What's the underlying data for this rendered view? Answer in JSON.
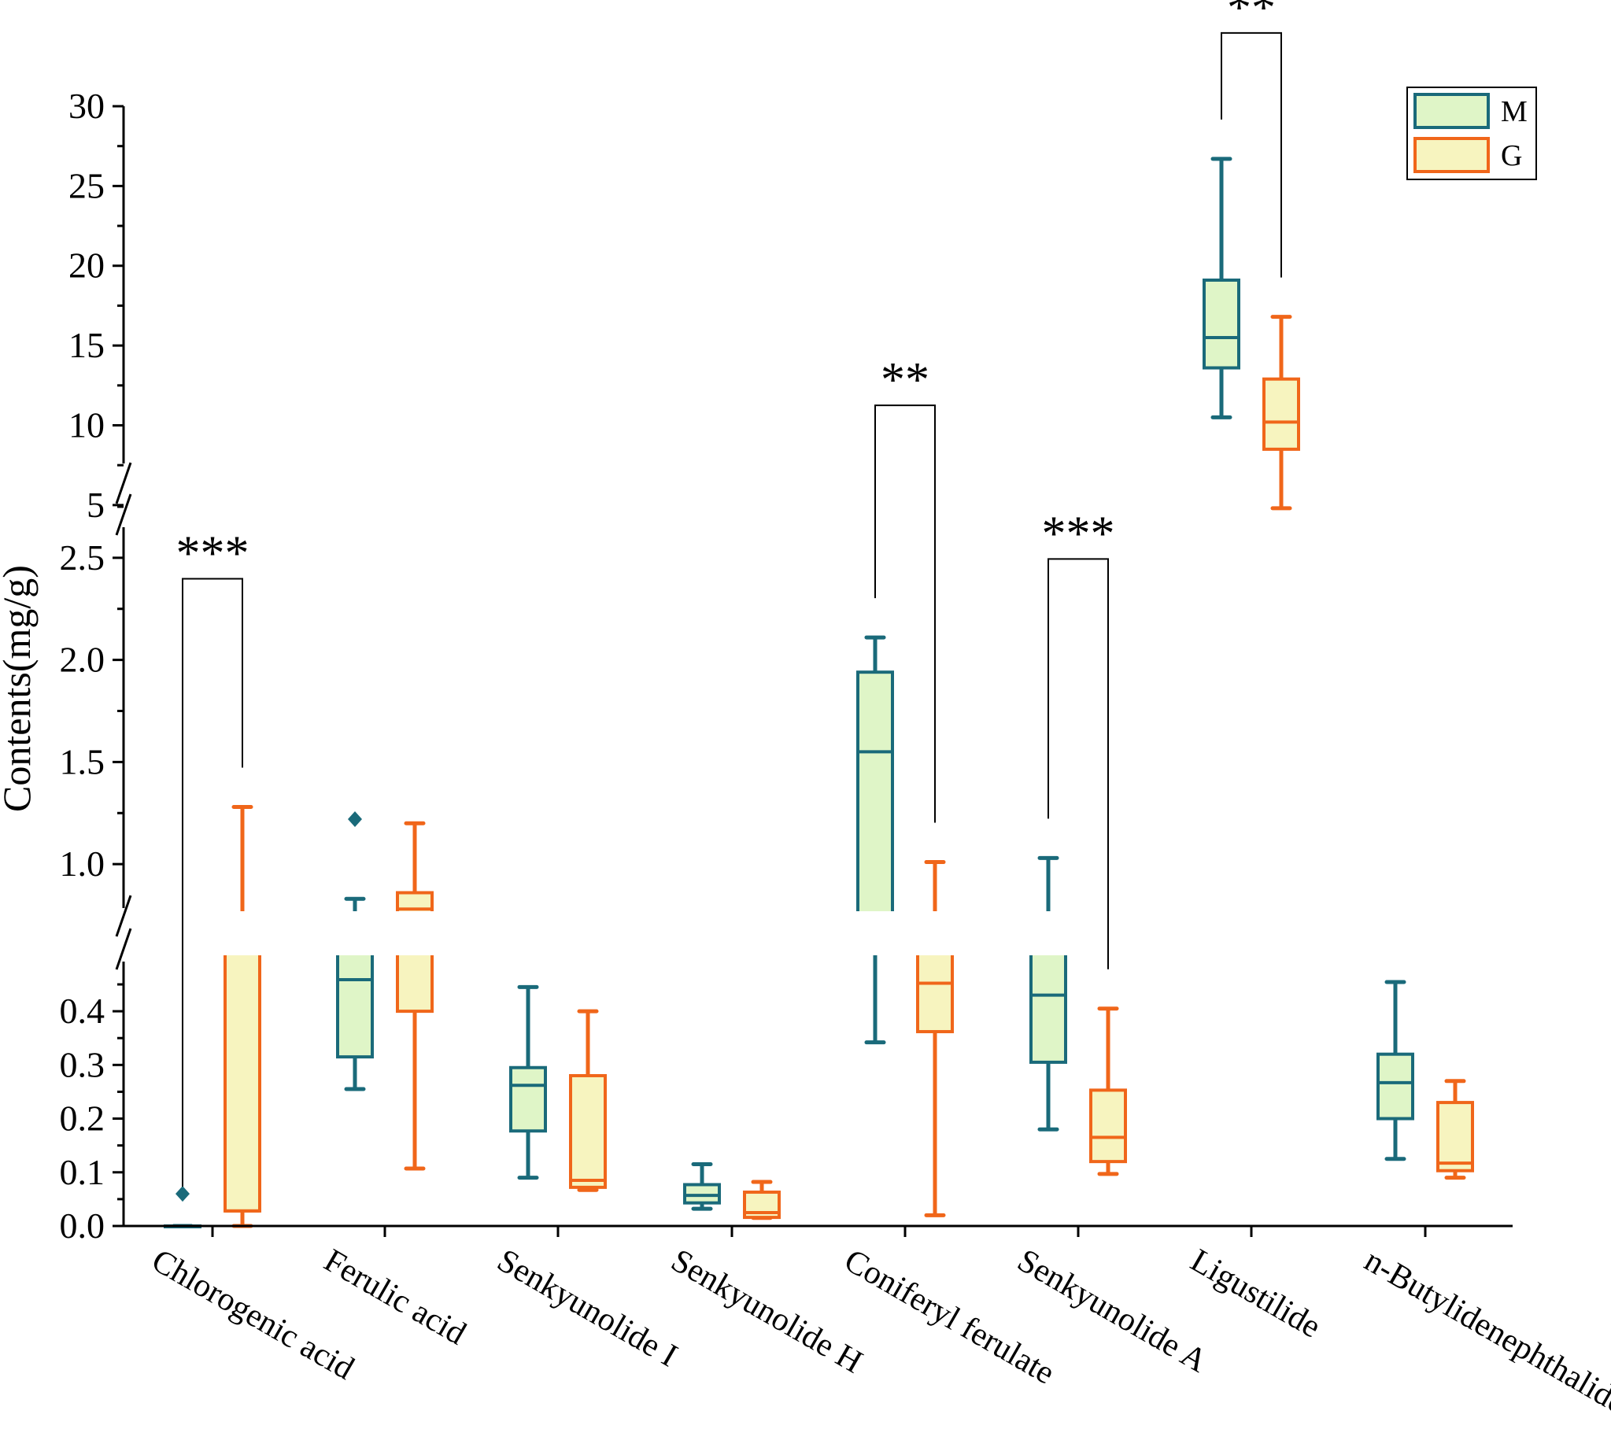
{
  "chart_data": {
    "type": "box",
    "ylabel": "Contents(mg/g)",
    "y_axis_segments": [
      {
        "name": "lower",
        "range": [
          0,
          0.45
        ],
        "ticks": [
          "0.0",
          "0.1",
          "0.2",
          "0.3",
          "0.4"
        ],
        "tick_values": [
          0,
          0.1,
          0.2,
          0.3,
          0.4
        ]
      },
      {
        "name": "middle",
        "range": [
          0.7,
          2.8
        ],
        "ticks": [
          "1.0",
          "1.5",
          "2.0",
          "2.5"
        ],
        "tick_values": [
          1.0,
          1.5,
          2.0,
          2.5
        ]
      },
      {
        "name": "upper",
        "range": [
          4.5,
          30
        ],
        "ticks": [
          "5",
          "10",
          "15",
          "20",
          "25",
          "30"
        ],
        "tick_values": [
          5,
          10,
          15,
          20,
          25,
          30
        ]
      }
    ],
    "categories": [
      "Chlorogenic acid",
      "Ferulic acid",
      "Senkyunolide I",
      "Senkyunolide H",
      "Coniferyl ferulate",
      "Senkyunolide A",
      "Ligustilide",
      "n-Butylidenephthalide"
    ],
    "series": [
      {
        "name": "M",
        "stroke": "#1a6a7a",
        "fill": "#dff5c7",
        "boxes": [
          {
            "min": 0.0,
            "q1": 0.0,
            "median": 0.0,
            "q3": 0.0,
            "max": 0.0,
            "outliers": [
              0.06
            ]
          },
          {
            "min": 0.255,
            "q1": 0.315,
            "median": 0.47,
            "q3": 0.64,
            "max": 0.83,
            "outliers": [
              1.22
            ]
          },
          {
            "min": 0.09,
            "q1": 0.177,
            "median": 0.262,
            "q3": 0.295,
            "max": 0.445,
            "outliers": []
          },
          {
            "min": 0.032,
            "q1": 0.043,
            "median": 0.057,
            "q3": 0.077,
            "max": 0.115,
            "outliers": []
          },
          {
            "min": 0.342,
            "q1": 0.7,
            "median": 1.55,
            "q3": 1.94,
            "max": 2.11,
            "outliers": []
          },
          {
            "min": 0.18,
            "q1": 0.305,
            "median": 0.43,
            "q3": 0.71,
            "max": 1.03,
            "outliers": []
          },
          {
            "min": 10.5,
            "q1": 13.6,
            "median": 15.5,
            "q3": 19.1,
            "max": 26.7,
            "outliers": []
          },
          {
            "min": 0.125,
            "q1": 0.2,
            "median": 0.267,
            "q3": 0.32,
            "max": 0.46,
            "outliers": []
          }
        ]
      },
      {
        "name": "G",
        "stroke": "#f0661a",
        "fill": "#f7f4bf",
        "boxes": [
          {
            "min": 0.0,
            "q1": 0.028,
            "median": 0.028,
            "q3": 0.72,
            "max": 1.28,
            "outliers": []
          },
          {
            "min": 0.107,
            "q1": 0.4,
            "median": 0.78,
            "q3": 0.86,
            "max": 1.2,
            "outliers": []
          },
          {
            "min": 0.067,
            "q1": 0.072,
            "median": 0.085,
            "q3": 0.28,
            "max": 0.4,
            "outliers": []
          },
          {
            "min": 0.015,
            "q1": 0.016,
            "median": 0.025,
            "q3": 0.063,
            "max": 0.082,
            "outliers": []
          },
          {
            "min": 0.02,
            "q1": 0.362,
            "median": 0.455,
            "q3": 0.68,
            "max": 1.01,
            "outliers": []
          },
          {
            "min": 0.097,
            "q1": 0.12,
            "median": 0.165,
            "q3": 0.253,
            "max": 0.405,
            "outliers": []
          },
          {
            "min": 4.8,
            "q1": 8.5,
            "median": 10.2,
            "q3": 12.9,
            "max": 16.8,
            "outliers": []
          },
          {
            "min": 0.09,
            "q1": 0.103,
            "median": 0.117,
            "q3": 0.23,
            "max": 0.27,
            "outliers": []
          }
        ]
      }
    ],
    "significance": [
      {
        "category_index": 0,
        "label": "***"
      },
      {
        "category_index": 4,
        "label": "**"
      },
      {
        "category_index": 5,
        "label": "***"
      },
      {
        "category_index": 6,
        "label": "**"
      }
    ],
    "legend": {
      "position": "top-right",
      "entries": [
        "M",
        "G"
      ]
    }
  }
}
